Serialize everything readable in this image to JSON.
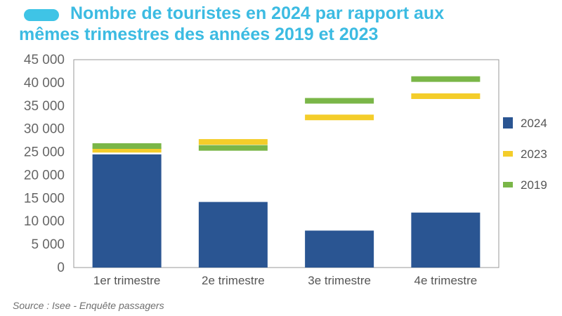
{
  "title": {
    "line1": "Nombre de touristes en 2024 par rapport aux",
    "line2": "mêmes trimestres des années 2019 et 2023"
  },
  "source": "Source : Isee - Enquête passagers",
  "colors": {
    "title": "#3cbbe2",
    "pill": "#3fc4e6",
    "bar2024": "#2a5592",
    "line2023": "#f4cd2a",
    "line2019": "#7ab648",
    "axis": "#999999"
  },
  "chart_data": {
    "type": "bar",
    "title": "Nombre de touristes en 2024 par rapport aux mêmes trimestres des années 2019 et 2023",
    "categories": [
      "1er trimestre",
      "2e trimestre",
      "3e trimestre",
      "4e trimestre"
    ],
    "series": [
      {
        "name": "2024",
        "kind": "bar",
        "values": [
          24500,
          14200,
          8000,
          11900
        ]
      },
      {
        "name": "2023",
        "kind": "marker",
        "values": [
          25500,
          27200,
          32500,
          37100
        ]
      },
      {
        "name": "2019",
        "kind": "marker",
        "values": [
          26300,
          25900,
          36100,
          40800
        ]
      }
    ],
    "ylim": [
      0,
      45000
    ],
    "yticks": [
      0,
      5000,
      10000,
      15000,
      20000,
      25000,
      30000,
      35000,
      40000,
      45000
    ],
    "ytick_labels": [
      "0",
      "5 000",
      "10 000",
      "15 000",
      "20 000",
      "25 000",
      "30 000",
      "35 000",
      "40 000",
      "45 000"
    ],
    "legend": [
      "2024",
      "2023",
      "2019"
    ],
    "legend_position": "right",
    "xlabel": "",
    "ylabel": ""
  }
}
